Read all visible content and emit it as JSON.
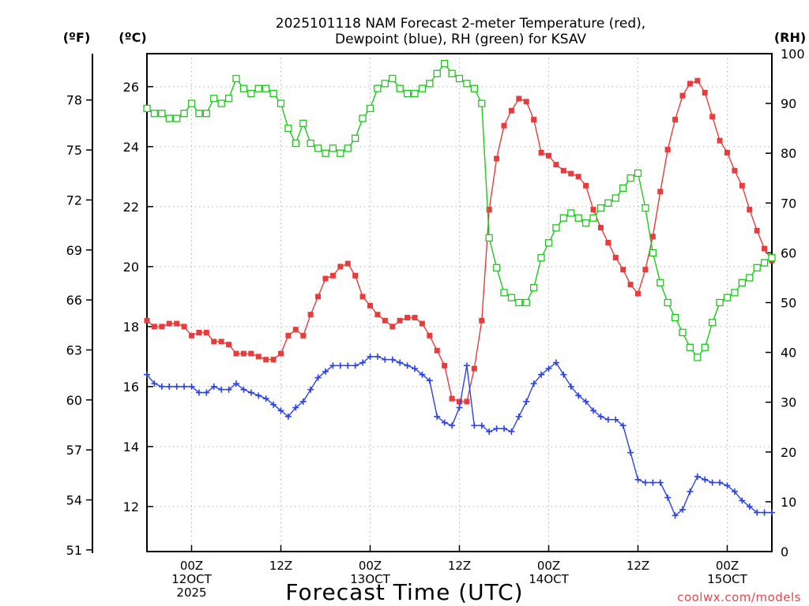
{
  "chart_data": {
    "type": "line",
    "title_line1": "2025101118 NAM Forecast 2-meter Temperature (red),",
    "title_line2": "Dewpoint (blue), RH (green) for KSAV",
    "left_unit_f": "(ºF)",
    "left_unit_c": "(ºC)",
    "right_unit": "(RH)",
    "xlabel": "Forecast Time (UTC)",
    "watermark": "coolwx.com/models",
    "x_unit": "hours since 2025-10-11 18Z",
    "xlim": [
      0,
      84
    ],
    "ylim_c": [
      10.5,
      27.1
    ],
    "ylim_rh": [
      0,
      100
    ],
    "f_ticks": [
      51,
      54,
      57,
      60,
      63,
      66,
      69,
      72,
      75,
      78
    ],
    "c_ticks": [
      12,
      14,
      16,
      18,
      20,
      22,
      24,
      26
    ],
    "rh_ticks": [
      0,
      10,
      20,
      30,
      40,
      50,
      60,
      70,
      80,
      90,
      100
    ],
    "x_ticks": [
      {
        "x": 6,
        "lines": [
          "00Z",
          "12OCT",
          "2025"
        ]
      },
      {
        "x": 18,
        "lines": [
          "12Z"
        ]
      },
      {
        "x": 30,
        "lines": [
          "00Z",
          "13OCT"
        ]
      },
      {
        "x": 42,
        "lines": [
          "12Z"
        ]
      },
      {
        "x": 54,
        "lines": [
          "00Z",
          "14OCT"
        ]
      },
      {
        "x": 66,
        "lines": [
          "12Z"
        ]
      },
      {
        "x": 78,
        "lines": [
          "00Z",
          "15OCT"
        ]
      }
    ],
    "series": [
      {
        "name": "Temperature",
        "axis": "c",
        "color": "#e83c3c",
        "marker": "filled-square",
        "x": [
          0,
          1,
          2,
          3,
          4,
          5,
          6,
          7,
          8,
          9,
          10,
          11,
          12,
          13,
          14,
          15,
          16,
          17,
          18,
          19,
          20,
          21,
          22,
          23,
          24,
          25,
          26,
          27,
          28,
          29,
          30,
          31,
          32,
          33,
          34,
          35,
          36,
          37,
          38,
          39,
          40,
          41,
          42,
          43,
          44,
          45,
          46,
          47,
          48,
          49,
          50,
          51,
          52,
          53,
          54,
          55,
          56,
          57,
          58,
          59,
          60,
          61,
          62,
          63,
          64,
          65,
          66,
          67,
          68,
          69,
          70,
          71,
          72,
          73,
          74,
          75,
          76,
          77,
          78,
          79,
          80,
          81,
          82,
          83,
          84
        ],
        "values": [
          18.2,
          18.0,
          18.0,
          18.1,
          18.1,
          18.0,
          17.7,
          17.8,
          17.8,
          17.5,
          17.5,
          17.4,
          17.1,
          17.1,
          17.1,
          17.0,
          16.9,
          16.9,
          17.1,
          17.7,
          17.9,
          17.7,
          18.4,
          19.0,
          19.6,
          19.7,
          20.0,
          20.1,
          19.7,
          19.0,
          18.7,
          18.4,
          18.2,
          18.0,
          18.2,
          18.3,
          18.3,
          18.1,
          17.7,
          17.2,
          16.7,
          15.6,
          15.5,
          15.5,
          16.6,
          18.2,
          21.9,
          23.6,
          24.7,
          25.2,
          25.6,
          25.5,
          24.9,
          23.8,
          23.7,
          23.4,
          23.2,
          23.1,
          23.0,
          22.7,
          21.9,
          21.3,
          20.8,
          20.3,
          19.9,
          19.4,
          19.1,
          19.9,
          21.0,
          22.5,
          23.9,
          24.9,
          25.7,
          26.1,
          26.2,
          25.8,
          25.0,
          24.2,
          23.8,
          23.2,
          22.7,
          21.9,
          21.2,
          20.6,
          20.2
        ]
      },
      {
        "name": "Dewpoint",
        "axis": "c",
        "color": "#2a42e8",
        "marker": "plus",
        "x": [
          0,
          1,
          2,
          3,
          4,
          5,
          6,
          7,
          8,
          9,
          10,
          11,
          12,
          13,
          14,
          15,
          16,
          17,
          18,
          19,
          20,
          21,
          22,
          23,
          24,
          25,
          26,
          27,
          28,
          29,
          30,
          31,
          32,
          33,
          34,
          35,
          36,
          37,
          38,
          39,
          40,
          41,
          42,
          43,
          44,
          45,
          46,
          47,
          48,
          49,
          50,
          51,
          52,
          53,
          54,
          55,
          56,
          57,
          58,
          59,
          60,
          61,
          62,
          63,
          64,
          65,
          66,
          67,
          68,
          69,
          70,
          71,
          72,
          73,
          74,
          75,
          76,
          77,
          78,
          79,
          80,
          81,
          82,
          83,
          84
        ],
        "values": [
          16.4,
          16.1,
          16.0,
          16.0,
          16.0,
          16.0,
          16.0,
          15.8,
          15.8,
          16.0,
          15.9,
          15.9,
          16.1,
          15.9,
          15.8,
          15.7,
          15.6,
          15.4,
          15.2,
          15.0,
          15.3,
          15.5,
          15.9,
          16.3,
          16.5,
          16.7,
          16.7,
          16.7,
          16.7,
          16.8,
          17.0,
          17.0,
          16.9,
          16.9,
          16.8,
          16.7,
          16.6,
          16.4,
          16.2,
          15.0,
          14.8,
          14.7,
          15.3,
          16.7,
          14.7,
          14.7,
          14.5,
          14.6,
          14.6,
          14.5,
          15.0,
          15.5,
          16.1,
          16.4,
          16.6,
          16.8,
          16.4,
          16.0,
          15.7,
          15.5,
          15.2,
          15.0,
          14.9,
          14.9,
          14.7,
          13.8,
          12.9,
          12.8,
          12.8,
          12.8,
          12.3,
          11.7,
          11.9,
          12.5,
          13.0,
          12.9,
          12.8,
          12.8,
          12.7,
          12.5,
          12.2,
          12.0,
          11.8,
          11.8,
          11.8
        ]
      },
      {
        "name": "RH",
        "axis": "rh",
        "color": "#1ec81e",
        "marker": "open-square",
        "x": [
          0,
          1,
          2,
          3,
          4,
          5,
          6,
          7,
          8,
          9,
          10,
          11,
          12,
          13,
          14,
          15,
          16,
          17,
          18,
          19,
          20,
          21,
          22,
          23,
          24,
          25,
          26,
          27,
          28,
          29,
          30,
          31,
          32,
          33,
          34,
          35,
          36,
          37,
          38,
          39,
          40,
          41,
          42,
          43,
          44,
          45,
          46,
          47,
          48,
          49,
          50,
          51,
          52,
          53,
          54,
          55,
          56,
          57,
          58,
          59,
          60,
          61,
          62,
          63,
          64,
          65,
          66,
          67,
          68,
          69,
          70,
          71,
          72,
          73,
          74,
          75,
          76,
          77,
          78,
          79,
          80,
          81,
          82,
          83,
          84
        ],
        "values": [
          89,
          88,
          88,
          87,
          87,
          88,
          90,
          88,
          88,
          91,
          90,
          91,
          95,
          93,
          92,
          93,
          93,
          92,
          90,
          85,
          82,
          86,
          82,
          81,
          80,
          81,
          80,
          81,
          83,
          87,
          89,
          93,
          94,
          95,
          93,
          92,
          92,
          93,
          94,
          96,
          98,
          96,
          95,
          94,
          93,
          90,
          63,
          57,
          52,
          51,
          50,
          50,
          53,
          59,
          62,
          65,
          67,
          68,
          67,
          66,
          67,
          69,
          70,
          71,
          73,
          75,
          76,
          69,
          60,
          54,
          50,
          47,
          44,
          41,
          39,
          41,
          46,
          50,
          51,
          52,
          54,
          55,
          57,
          58,
          59
        ]
      }
    ]
  }
}
